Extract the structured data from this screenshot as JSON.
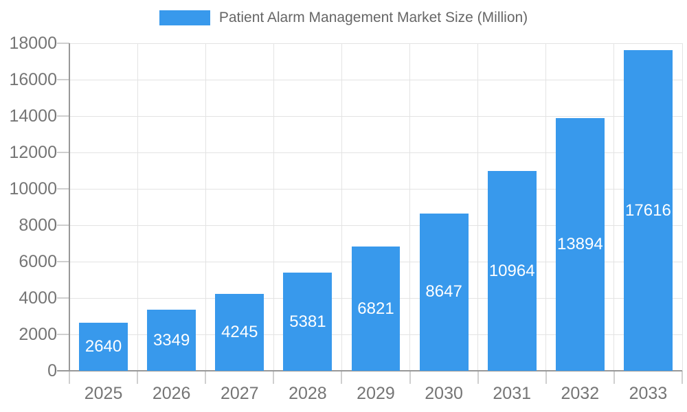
{
  "chart_data": {
    "type": "bar",
    "title": "Patient Alarm Management Market Size (Million)",
    "legend": [
      "Patient Alarm Management Market Size (Million)"
    ],
    "legend_position": "top",
    "categories": [
      "2025",
      "2026",
      "2027",
      "2028",
      "2029",
      "2030",
      "2031",
      "2032",
      "2033"
    ],
    "series": [
      {
        "name": "Patient Alarm Management Market Size (Million)",
        "values": [
          2640,
          3349,
          4245,
          5381,
          6821,
          8647,
          10964,
          13894,
          17616
        ]
      }
    ],
    "value_labels_shown": true,
    "xlabel": "",
    "ylabel": "",
    "ylim": [
      0,
      18000
    ],
    "ytick_step": 2000,
    "ytick_labels": [
      "0",
      "2000",
      "4000",
      "6000",
      "8000",
      "10000",
      "12000",
      "14000",
      "16000",
      "18000"
    ],
    "grid": true,
    "bar_color": "#3899EC",
    "value_label_color": "#FFFFFF",
    "axis_text_color": "#757575",
    "legend_text_color": "#666666",
    "grid_color": "#E3E3E3",
    "axis_line_color": "#989898"
  }
}
